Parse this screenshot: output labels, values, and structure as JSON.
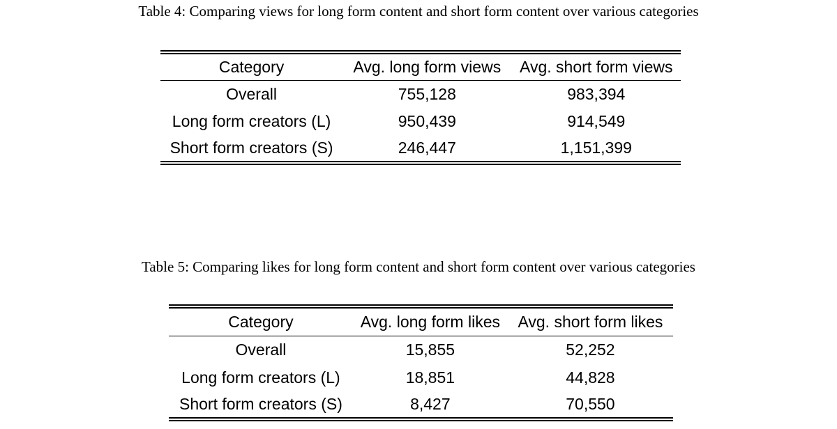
{
  "page": {
    "background_color": "#ffffff",
    "text_color": "#000000"
  },
  "tables": [
    {
      "caption": "Table 4: Comparing views for long form content and short form content over various categories",
      "columns": [
        "Category",
        "Avg. long form views",
        "Avg. short form views"
      ],
      "rows": [
        [
          "Overall",
          "755,128",
          "983,394"
        ],
        [
          "Long form creators (L)",
          "950,439",
          "914,549"
        ],
        [
          "Short form creators (S)",
          "246,447",
          "1,151,399"
        ]
      ]
    },
    {
      "caption": "Table 5: Comparing likes for long form content and short form content over various categories",
      "columns": [
        "Category",
        "Avg. long form likes",
        "Avg. short form likes"
      ],
      "rows": [
        [
          "Overall",
          "15,855",
          "52,252"
        ],
        [
          "Long form creators (L)",
          "18,851",
          "44,828"
        ],
        [
          "Short form creators (S)",
          "8,427",
          "70,550"
        ]
      ]
    }
  ]
}
